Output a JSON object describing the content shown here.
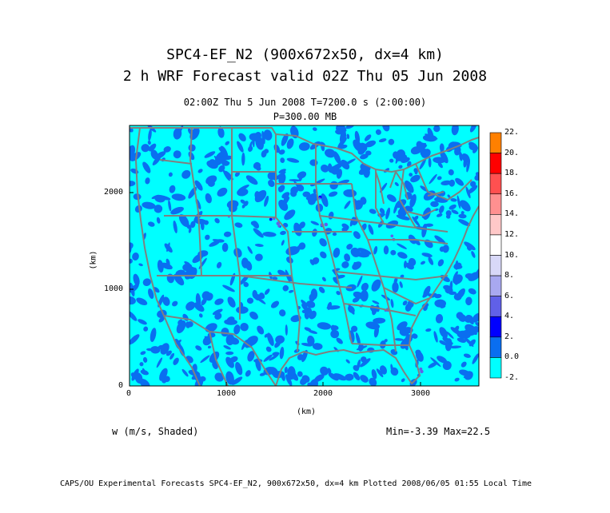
{
  "title": {
    "line1": "SPC4-EF_N2 (900x672x50, dx=4 km)",
    "line2": "2 h WRF Forecast valid 02Z Thu 05 Jun 2008",
    "line3": "02:00Z Thu  5 Jun 2008    T=7200.0 s (2:00:00)",
    "line4": "P=300.00 MB"
  },
  "axes": {
    "x_label": "(km)",
    "y_label": "(km)",
    "x_ticks": [
      "0",
      "1000",
      "2000",
      "3000"
    ],
    "y_ticks": [
      "0",
      "1000",
      "2000"
    ],
    "x_range": [
      0,
      3600
    ],
    "y_range": [
      0,
      2688
    ]
  },
  "colorbar": {
    "labels": [
      "22.",
      "20.",
      "18.",
      "16.",
      "14.",
      "12.",
      "10.",
      "8.",
      "6.",
      "4.",
      "2.",
      "0.0",
      "-2."
    ],
    "colors": [
      "#ff8000",
      "#ff0000",
      "#ff5050",
      "#ff9090",
      "#ffc8c8",
      "#ffffff",
      "#d8d8f8",
      "#a8a8f0",
      "#6060e8",
      "#0000ff",
      "#0a6ef0",
      "#00ffff"
    ]
  },
  "field": {
    "variable": "w (m/s, Shaded)",
    "stats": "Min=-3.39 Max=22.5"
  },
  "footer": "CAPS/OU Experimental Forecasts  SPC4-EF_N2, 900x672x50, dx=4 km  Plotted 2008/06/05 01:55 Local Time",
  "colors": {
    "background_field": "#00ffff",
    "field_secondary": "#0a6ef0",
    "boundaries": "#808080"
  }
}
